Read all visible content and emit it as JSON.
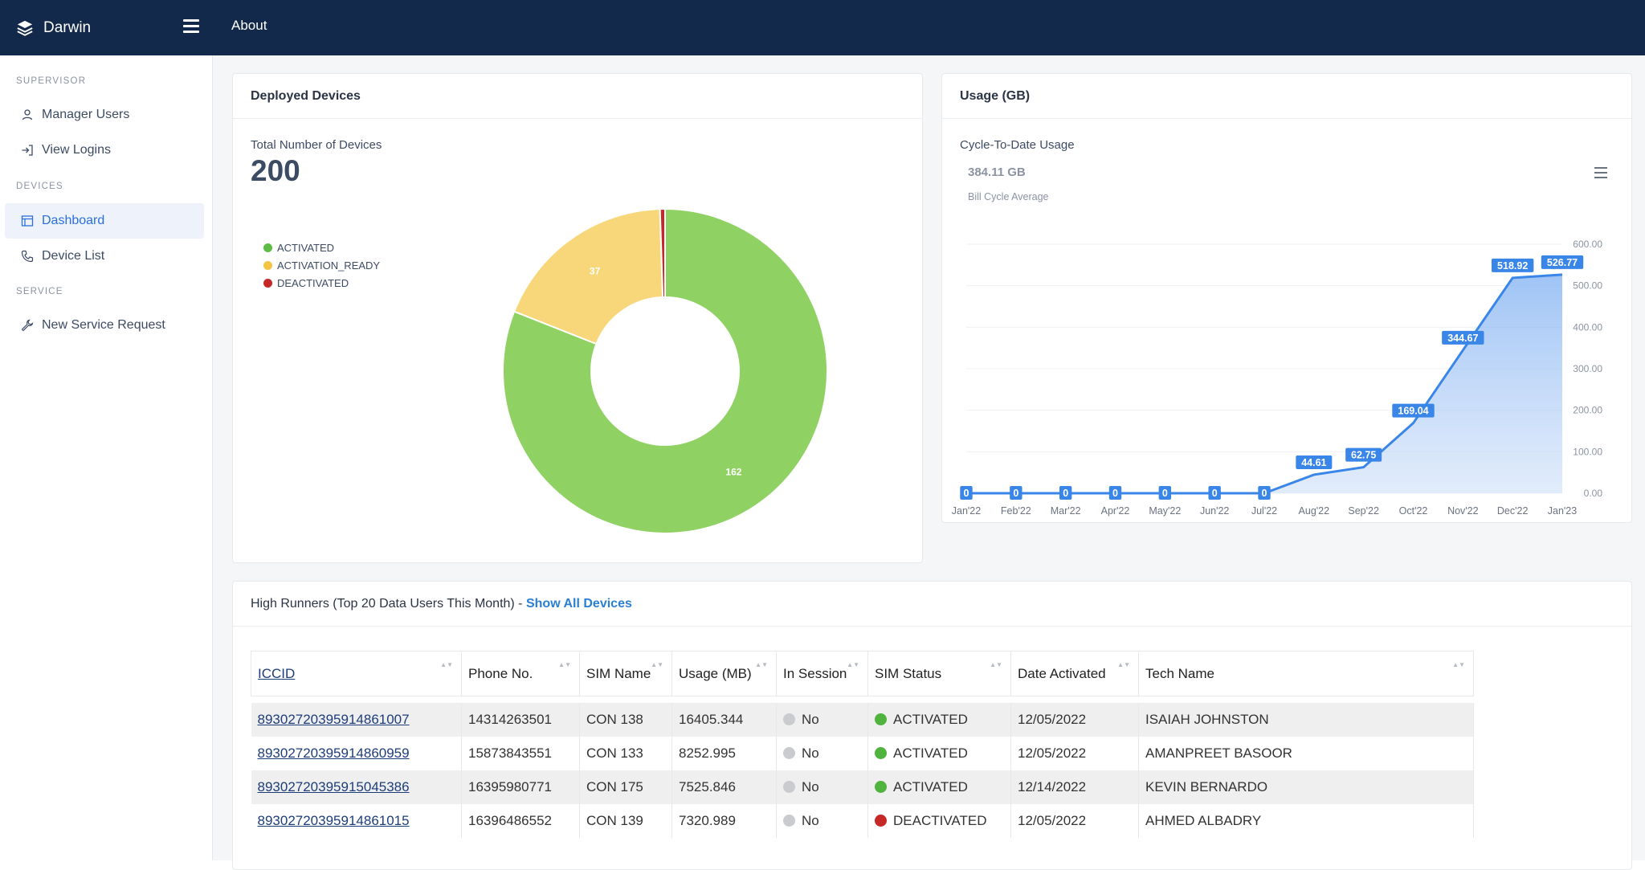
{
  "header": {
    "brand": "Darwin",
    "about": "About"
  },
  "sidebar": {
    "sections": [
      {
        "title": "SUPERVISOR",
        "items": [
          {
            "label": "Manager Users",
            "icon": "user-icon"
          },
          {
            "label": "View Logins",
            "icon": "login-icon"
          }
        ]
      },
      {
        "title": "DEVICES",
        "items": [
          {
            "label": "Dashboard",
            "icon": "dashboard-icon",
            "active": true
          },
          {
            "label": "Device List",
            "icon": "phone-icon"
          }
        ]
      },
      {
        "title": "SERVICE",
        "items": [
          {
            "label": "New Service Request",
            "icon": "wrench-icon"
          }
        ]
      }
    ]
  },
  "deployed": {
    "title": "Deployed Devices",
    "total_label": "Total Number of Devices",
    "total_value": "200",
    "legend": [
      {
        "label": "ACTIVATED",
        "color": "#5dbb46"
      },
      {
        "label": "ACTIVATION_READY",
        "color": "#f4c542"
      },
      {
        "label": "DEACTIVATED",
        "color": "#c62828"
      }
    ]
  },
  "usage": {
    "title": "Usage (GB)",
    "subtitle": "Cycle-To-Date Usage",
    "big_value": "384.11 GB",
    "big_caption": "Bill Cycle Average"
  },
  "chart_data": [
    {
      "type": "pie",
      "labels": [
        "ACTIVATED",
        "ACTIVATION_READY",
        "DEACTIVATED"
      ],
      "values": [
        162,
        37,
        1
      ],
      "data_labels": [
        "162",
        "37",
        ""
      ],
      "colors": [
        "#8fd163",
        "#f7d77a",
        "#c62828"
      ]
    },
    {
      "type": "area",
      "x": [
        "Jan'22",
        "Feb'22",
        "Mar'22",
        "Apr'22",
        "May'22",
        "Jun'22",
        "Jul'22",
        "Aug'22",
        "Sep'22",
        "Oct'22",
        "Nov'22",
        "Dec'22",
        "Jan'23"
      ],
      "values": [
        0,
        0,
        0,
        0,
        0,
        0,
        0,
        44.61,
        62.75,
        169.04,
        344.67,
        518.92,
        526.77
      ],
      "data_labels": [
        "0",
        "0",
        "0",
        "0",
        "0",
        "0",
        "0",
        "44.61",
        "62.75",
        "169.04",
        "344.67",
        "518.92",
        "526.77"
      ],
      "yticks": [
        "0.00",
        "100.00",
        "200.00",
        "300.00",
        "400.00",
        "500.00",
        "600.00"
      ],
      "ylim": [
        0,
        600
      ],
      "color": "#3a86e8"
    }
  ],
  "high_runners": {
    "title": "High Runners (Top 20 Data Users This Month) - ",
    "link": "Show All Devices",
    "columns": [
      "ICCID",
      "Phone No.",
      "SIM Name",
      "Usage (MB)",
      "In Session",
      "SIM Status",
      "Date Activated",
      "Tech Name"
    ],
    "rows": [
      {
        "iccid": "89302720395914861007",
        "phone": "14314263501",
        "sim": "CON 138",
        "usage": "16405.344",
        "session": "No",
        "status": "ACTIVATED",
        "status_color": "#4fb33e",
        "date": "12/05/2022",
        "tech": "ISAIAH JOHNSTON"
      },
      {
        "iccid": "89302720395914860959",
        "phone": "15873843551",
        "sim": "CON 133",
        "usage": "8252.995",
        "session": "No",
        "status": "ACTIVATED",
        "status_color": "#4fb33e",
        "date": "12/05/2022",
        "tech": "AMANPREET BASOOR"
      },
      {
        "iccid": "89302720395915045386",
        "phone": "16395980771",
        "sim": "CON 175",
        "usage": "7525.846",
        "session": "No",
        "status": "ACTIVATED",
        "status_color": "#4fb33e",
        "date": "12/14/2022",
        "tech": "KEVIN BERNARDO"
      },
      {
        "iccid": "89302720395914861015",
        "phone": "16396486552",
        "sim": "CON 139",
        "usage": "7320.989",
        "session": "No",
        "status": "DEACTIVATED",
        "status_color": "#c62828",
        "date": "12/05/2022",
        "tech": "AHMED ALBADRY"
      }
    ]
  }
}
